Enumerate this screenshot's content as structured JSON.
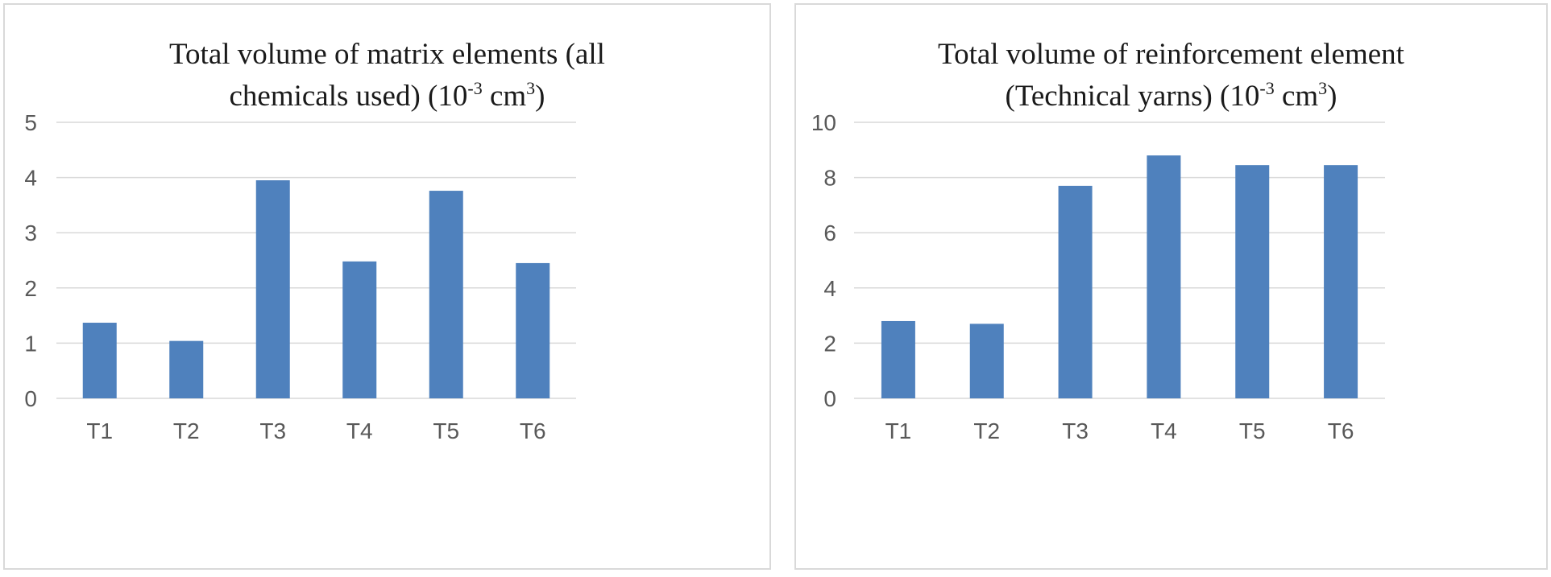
{
  "chart_data": [
    {
      "type": "bar",
      "title_lines": [
        [
          "Total volume of matrix elements (all"
        ],
        [
          "chemicals used) (10",
          {
            "sup": "-3"
          },
          " cm",
          {
            "sup": "3"
          },
          ")"
        ]
      ],
      "categories": [
        "T1",
        "T2",
        "T3",
        "T4",
        "T5",
        "T6"
      ],
      "values": [
        1.37,
        1.04,
        3.95,
        2.48,
        3.76,
        2.45
      ],
      "ylim": [
        0,
        5
      ],
      "yticks": [
        0,
        1,
        2,
        3,
        4,
        5
      ],
      "grid": true,
      "bar_color": "#4f81bd",
      "grid_color": "#d9d9d9"
    },
    {
      "type": "bar",
      "title_lines": [
        [
          "Total volume of reinforcement element"
        ],
        [
          "(Technical yarns)  (10",
          {
            "sup": "-3"
          },
          " cm",
          {
            "sup": "3"
          },
          ")"
        ]
      ],
      "categories": [
        "T1",
        "T2",
        "T3",
        "T4",
        "T5",
        "T6"
      ],
      "values": [
        2.8,
        2.7,
        7.7,
        8.8,
        8.45,
        8.45
      ],
      "ylim": [
        0,
        10
      ],
      "yticks": [
        0,
        2,
        4,
        6,
        8,
        10
      ],
      "grid": true,
      "bar_color": "#4f81bd",
      "grid_color": "#d9d9d9"
    }
  ]
}
